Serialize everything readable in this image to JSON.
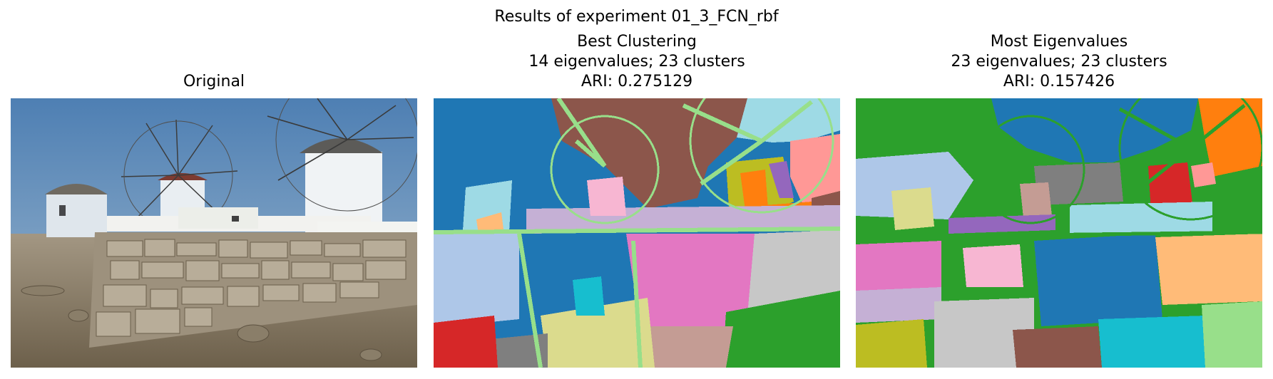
{
  "figure": {
    "suptitle": "Results of experiment 01_3_FCN_rbf"
  },
  "panels": [
    {
      "title_lines": [
        "Original"
      ],
      "kind": "photo",
      "colors": {
        "sky": "#5f8fbf",
        "wall_stone": "#a89a85",
        "ground": "#8f8168",
        "windmill": "#e8eef2",
        "roof": "#6d6860"
      }
    },
    {
      "title_lines": [
        "Best Clustering",
        "14 eigenvalues; 23 clusters",
        "ARI: 0.275129"
      ],
      "kind": "clustering",
      "colors": {
        "blue": "#1f77b4",
        "brown": "#8c564b",
        "light_green": "#98df8a",
        "light_blue": "#9edae5",
        "pink": "#ff9896",
        "olive": "#bcbd22",
        "orange": "#ff7f0e",
        "purple": "#9467bd",
        "light_purple": "#c5b0d5",
        "magenta": "#e377c2",
        "light_magenta": "#f7b6d2",
        "gray": "#c7c7c7",
        "dark_gray": "#7f7f7f",
        "green": "#2ca02c",
        "red": "#d62728",
        "khaki": "#dbdb8d",
        "cyan": "#17becf",
        "peach": "#ffbb78",
        "light_steel": "#aec7e8",
        "rosy": "#c49c94"
      }
    },
    {
      "title_lines": [
        "Most Eigenvalues",
        "23 eigenvalues; 23 clusters",
        "ARI: 0.157426"
      ],
      "kind": "clustering",
      "colors": {
        "green": "#2ca02c",
        "blue": "#1f77b4",
        "orange": "#ff7f0e",
        "light_steel": "#aec7e8",
        "red": "#d62728",
        "gray": "#7f7f7f",
        "pink": "#ff9896",
        "khaki": "#dbdb8d",
        "purple": "#9467bd",
        "light_blue": "#9edae5",
        "rosy": "#c49c94",
        "magenta": "#e377c2",
        "light_purple": "#c5b0d5",
        "light_gray": "#c7c7c7",
        "peach": "#ffbb78",
        "olive": "#bcbd22",
        "brown": "#8c564b",
        "cyan": "#17becf",
        "light_green": "#98df8a",
        "light_magenta": "#f7b6d2"
      }
    }
  ]
}
